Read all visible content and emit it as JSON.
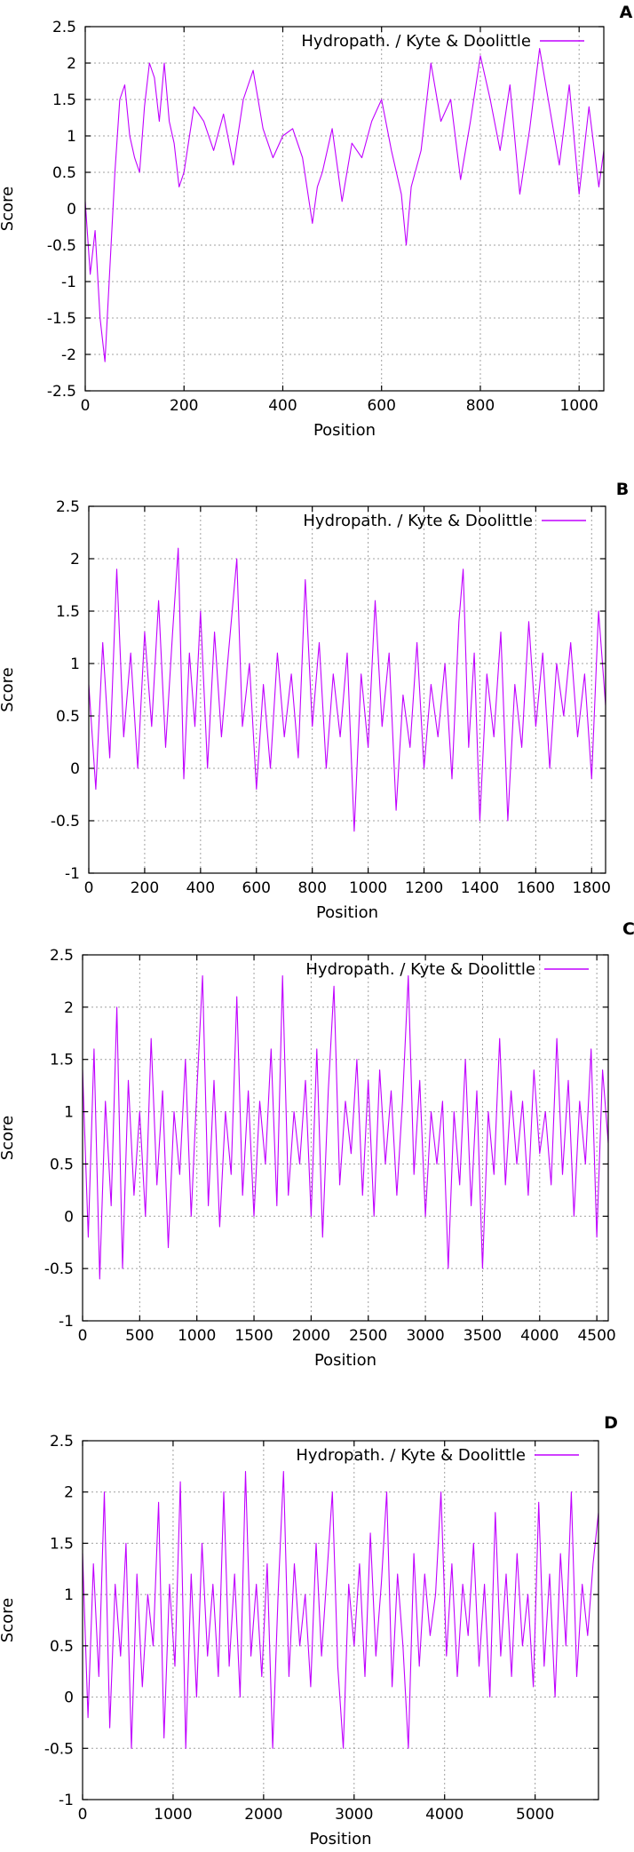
{
  "series_color": "#c000ff",
  "chart_data": [
    {
      "panel": "A",
      "type": "line",
      "title": "",
      "xlabel": "Position",
      "ylabel": "Score",
      "legend": "Hydropath. / Kyte & Doolittle",
      "legend_position": "top-right",
      "grid": true,
      "xlim": [
        0,
        1050
      ],
      "ylim": [
        -2.5,
        2.5
      ],
      "xticks": [
        0,
        200,
        400,
        600,
        800,
        1000
      ],
      "yticks": [
        2.5,
        2,
        1.5,
        1,
        0.5,
        0,
        -0.5,
        -1,
        -1.5,
        -2,
        -2.5
      ],
      "series": [
        {
          "x": [
            0,
            10,
            20,
            30,
            40,
            50,
            60,
            70,
            80,
            90,
            100,
            110,
            120,
            130,
            140,
            150,
            160,
            170,
            180,
            190,
            200,
            220,
            240,
            260,
            280,
            300,
            320,
            340,
            360,
            380,
            400,
            420,
            440,
            460,
            470,
            480,
            500,
            520,
            540,
            560,
            580,
            600,
            620,
            640,
            650,
            660,
            680,
            700,
            720,
            740,
            760,
            780,
            800,
            820,
            840,
            860,
            880,
            900,
            920,
            940,
            960,
            980,
            1000,
            1020,
            1040,
            1050
          ],
          "values": [
            0.1,
            -0.9,
            -0.3,
            -1.5,
            -2.1,
            -0.8,
            0.5,
            1.5,
            1.7,
            1.0,
            0.7,
            0.5,
            1.4,
            2.0,
            1.8,
            1.2,
            2.0,
            1.2,
            0.9,
            0.3,
            0.5,
            1.4,
            1.2,
            0.8,
            1.3,
            0.6,
            1.5,
            1.9,
            1.1,
            0.7,
            1.0,
            1.1,
            0.7,
            -0.2,
            0.3,
            0.5,
            1.1,
            0.1,
            0.9,
            0.7,
            1.2,
            1.5,
            0.8,
            0.2,
            -0.5,
            0.3,
            0.8,
            2.0,
            1.2,
            1.5,
            0.4,
            1.2,
            2.1,
            1.5,
            0.8,
            1.7,
            0.2,
            1.1,
            2.2,
            1.4,
            0.6,
            1.7,
            0.2,
            1.4,
            0.3,
            0.8
          ]
        }
      ]
    },
    {
      "panel": "B",
      "type": "line",
      "title": "",
      "xlabel": "Position",
      "ylabel": "Score",
      "legend": "Hydropath. / Kyte & Doolittle",
      "legend_position": "top-right",
      "grid": true,
      "xlim": [
        0,
        1850
      ],
      "ylim": [
        -1,
        2.5
      ],
      "xticks": [
        0,
        200,
        400,
        600,
        800,
        1000,
        1200,
        1400,
        1600,
        1800
      ],
      "yticks": [
        2.5,
        2,
        1.5,
        1,
        0.5,
        0,
        -0.5,
        -1
      ],
      "series": [
        {
          "x": [
            0,
            25,
            50,
            75,
            100,
            125,
            150,
            175,
            200,
            225,
            250,
            275,
            300,
            320,
            340,
            360,
            380,
            400,
            425,
            450,
            475,
            500,
            530,
            550,
            575,
            600,
            625,
            650,
            675,
            700,
            725,
            750,
            775,
            800,
            825,
            850,
            875,
            900,
            925,
            950,
            975,
            1000,
            1025,
            1050,
            1075,
            1100,
            1125,
            1150,
            1175,
            1200,
            1225,
            1250,
            1275,
            1300,
            1325,
            1340,
            1360,
            1380,
            1400,
            1425,
            1450,
            1475,
            1500,
            1525,
            1550,
            1575,
            1600,
            1625,
            1650,
            1675,
            1700,
            1725,
            1750,
            1775,
            1800,
            1825,
            1850
          ],
          "values": [
            0.8,
            -0.2,
            1.2,
            0.1,
            1.9,
            0.3,
            1.1,
            0.0,
            1.3,
            0.4,
            1.6,
            0.2,
            1.3,
            2.1,
            -0.1,
            1.1,
            0.4,
            1.5,
            0.0,
            1.3,
            0.3,
            1.1,
            2.0,
            0.4,
            1.0,
            -0.2,
            0.8,
            0.0,
            1.1,
            0.3,
            0.9,
            0.1,
            1.8,
            0.4,
            1.2,
            0.0,
            0.9,
            0.3,
            1.1,
            -0.6,
            0.9,
            0.2,
            1.6,
            0.4,
            1.1,
            -0.4,
            0.7,
            0.2,
            1.2,
            0.0,
            0.8,
            0.3,
            1.0,
            -0.1,
            1.4,
            1.9,
            0.2,
            1.1,
            -0.5,
            0.9,
            0.3,
            1.3,
            -0.5,
            0.8,
            0.2,
            1.4,
            0.4,
            1.1,
            0.0,
            1.0,
            0.5,
            1.2,
            0.3,
            0.9,
            -0.1,
            1.5,
            0.6
          ]
        }
      ]
    },
    {
      "panel": "C",
      "type": "line",
      "title": "",
      "xlabel": "Position",
      "ylabel": "Score",
      "legend": "Hydropath. / Kyte & Doolittle",
      "legend_position": "top-right",
      "grid": true,
      "xlim": [
        0,
        4600
      ],
      "ylim": [
        -1,
        2.5
      ],
      "xticks": [
        0,
        500,
        1000,
        1500,
        2000,
        2500,
        3000,
        3500,
        4000,
        4500
      ],
      "yticks": [
        2.5,
        2,
        1.5,
        1,
        0.5,
        0,
        -0.5,
        -1
      ],
      "series": [
        {
          "x": [
            0,
            50,
            100,
            150,
            200,
            250,
            300,
            350,
            400,
            450,
            500,
            550,
            600,
            650,
            700,
            750,
            800,
            850,
            900,
            950,
            1000,
            1050,
            1100,
            1150,
            1200,
            1250,
            1300,
            1350,
            1400,
            1450,
            1500,
            1550,
            1600,
            1650,
            1700,
            1750,
            1800,
            1850,
            1900,
            1950,
            2000,
            2050,
            2100,
            2150,
            2200,
            2250,
            2300,
            2350,
            2400,
            2450,
            2500,
            2550,
            2600,
            2650,
            2700,
            2750,
            2800,
            2850,
            2900,
            2950,
            3000,
            3050,
            3100,
            3150,
            3200,
            3250,
            3300,
            3350,
            3400,
            3450,
            3500,
            3550,
            3600,
            3650,
            3700,
            3750,
            3800,
            3850,
            3900,
            3950,
            4000,
            4050,
            4100,
            4150,
            4200,
            4250,
            4300,
            4350,
            4400,
            4450,
            4500,
            4550,
            4600
          ],
          "values": [
            1.4,
            -0.2,
            1.6,
            -0.6,
            1.1,
            0.1,
            2.0,
            -0.5,
            1.3,
            0.2,
            1.0,
            0.0,
            1.7,
            0.3,
            1.2,
            -0.3,
            1.0,
            0.4,
            1.5,
            0.0,
            1.2,
            2.3,
            0.1,
            1.3,
            -0.1,
            1.0,
            0.4,
            2.1,
            0.2,
            1.2,
            0.0,
            1.1,
            0.5,
            1.6,
            0.1,
            2.3,
            0.2,
            1.0,
            0.5,
            1.3,
            0.0,
            1.6,
            -0.2,
            1.2,
            2.2,
            0.3,
            1.1,
            0.6,
            1.5,
            0.2,
            1.3,
            0.0,
            1.4,
            0.5,
            1.2,
            0.2,
            1.1,
            2.3,
            0.4,
            1.3,
            0.0,
            1.0,
            0.5,
            1.1,
            -0.5,
            1.0,
            0.3,
            1.5,
            0.1,
            1.2,
            -0.5,
            1.0,
            0.4,
            1.7,
            0.3,
            1.2,
            0.5,
            1.1,
            0.2,
            1.4,
            0.6,
            1.0,
            0.3,
            1.7,
            0.4,
            1.3,
            0.0,
            1.1,
            0.5,
            1.6,
            -0.2,
            1.4,
            0.7
          ]
        }
      ]
    },
    {
      "panel": "D",
      "type": "line",
      "title": "",
      "xlabel": "Position",
      "ylabel": "Score",
      "legend": "Hydropath. / Kyte & Doolittle",
      "legend_position": "top-right",
      "grid": true,
      "xlim": [
        0,
        5700
      ],
      "ylim": [
        -1,
        2.5
      ],
      "xticks": [
        0,
        1000,
        2000,
        3000,
        4000,
        5000
      ],
      "yticks": [
        2.5,
        2,
        1.5,
        1,
        0.5,
        0,
        -0.5,
        -1
      ],
      "series": [
        {
          "x": [
            0,
            60,
            120,
            180,
            240,
            300,
            360,
            420,
            480,
            540,
            600,
            660,
            720,
            780,
            840,
            900,
            960,
            1020,
            1080,
            1140,
            1200,
            1260,
            1320,
            1380,
            1440,
            1500,
            1560,
            1620,
            1680,
            1740,
            1800,
            1860,
            1920,
            1980,
            2040,
            2100,
            2160,
            2220,
            2280,
            2340,
            2400,
            2460,
            2520,
            2580,
            2640,
            2700,
            2760,
            2820,
            2880,
            2940,
            3000,
            3060,
            3120,
            3180,
            3240,
            3300,
            3360,
            3420,
            3480,
            3540,
            3600,
            3660,
            3720,
            3780,
            3840,
            3900,
            3960,
            4020,
            4080,
            4140,
            4200,
            4260,
            4320,
            4380,
            4440,
            4500,
            4560,
            4620,
            4680,
            4740,
            4800,
            4860,
            4920,
            4980,
            5040,
            5100,
            5160,
            5220,
            5280,
            5340,
            5400,
            5460,
            5520,
            5580,
            5640,
            5700
          ],
          "values": [
            1.4,
            -0.2,
            1.3,
            0.2,
            2.0,
            -0.3,
            1.1,
            0.4,
            1.5,
            -0.5,
            1.2,
            0.1,
            1.0,
            0.5,
            1.9,
            -0.4,
            1.1,
            0.3,
            2.1,
            -0.5,
            1.2,
            0.0,
            1.5,
            0.4,
            1.1,
            0.2,
            2.0,
            0.3,
            1.2,
            0.0,
            2.2,
            0.4,
            1.1,
            0.2,
            1.3,
            -0.5,
            1.0,
            2.2,
            0.2,
            1.3,
            0.5,
            1.0,
            0.1,
            1.5,
            0.4,
            1.2,
            2.0,
            0.3,
            -0.5,
            1.1,
            0.5,
            1.3,
            0.2,
            1.6,
            0.4,
            1.1,
            2.0,
            0.1,
            1.2,
            0.5,
            -0.5,
            1.4,
            0.3,
            1.2,
            0.6,
            1.0,
            2.0,
            0.4,
            1.3,
            0.2,
            1.1,
            0.6,
            1.5,
            0.3,
            1.1,
            0.0,
            1.8,
            0.4,
            1.2,
            0.2,
            1.4,
            0.5,
            1.0,
            0.1,
            1.9,
            0.3,
            1.2,
            0.0,
            1.4,
            0.5,
            2.0,
            0.2,
            1.1,
            0.6,
            1.3,
            1.8
          ]
        }
      ]
    }
  ]
}
